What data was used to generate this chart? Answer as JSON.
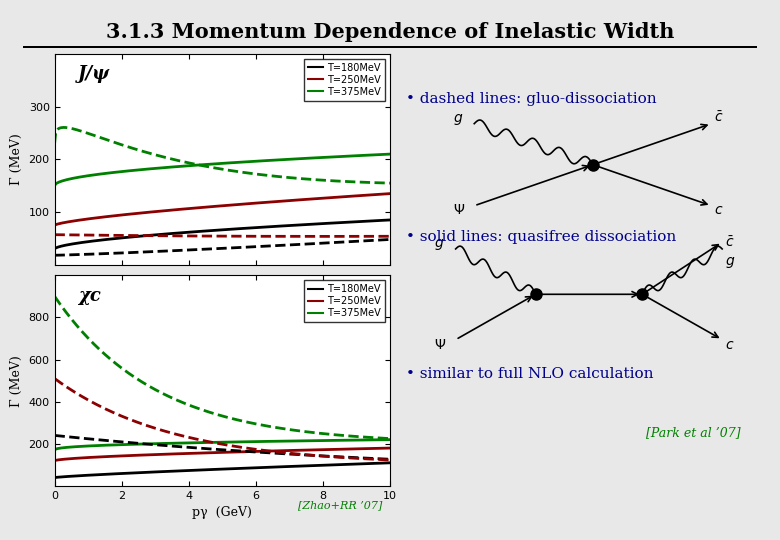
{
  "title": "3.1.3 Momentum Dependence of Inelastic Width",
  "background_color": "#e8e8e8",
  "plot_bg_color": "#ffffff",
  "bullet_color": "#00008B",
  "bullet1": "dashed lines: gluo-dissociation",
  "bullet2": "solid lines: quasifree dissociation",
  "bullet3": "similar to full NLO calculation",
  "ref1": "[Zhao+RR ’07]",
  "ref2": "[Park et al ’07]",
  "ref1_color": "#008000",
  "ref2_color": "#008000",
  "xlabel": "pγ  (GeV)",
  "ylabel": "Γ (MeV)",
  "colors": {
    "black": "#000000",
    "red": "#8B0000",
    "green": "#008000"
  },
  "temps": [
    "T=180MeV",
    "T=250MeV",
    "T=375MeV"
  ],
  "pT_min": 0,
  "pT_max": 10,
  "jpsi_ylim": [
    0,
    400
  ],
  "chic_ylim": [
    0,
    1000
  ],
  "jpsi_label": "J/ψ",
  "chic_label": "χc"
}
